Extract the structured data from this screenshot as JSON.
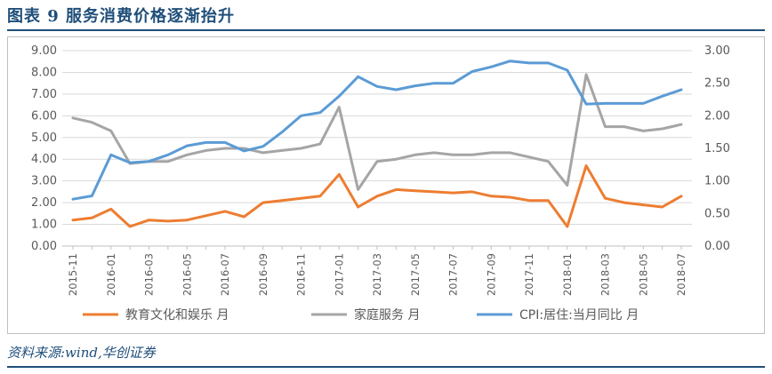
{
  "figure": {
    "title": "图表 9   服务消费价格逐渐抬升",
    "source": "资料来源:wind,华创证券"
  },
  "chart_data": {
    "type": "line",
    "x": [
      "2015-11",
      "2015-12",
      "2016-01",
      "2016-02",
      "2016-03",
      "2016-04",
      "2016-05",
      "2016-06",
      "2016-07",
      "2016-08",
      "2016-09",
      "2016-10",
      "2016-11",
      "2016-12",
      "2017-01",
      "2017-02",
      "2017-03",
      "2017-04",
      "2017-05",
      "2017-06",
      "2017-07",
      "2017-08",
      "2017-09",
      "2017-10",
      "2017-11",
      "2017-12",
      "2018-01",
      "2018-02",
      "2018-03",
      "2018-04",
      "2018-05",
      "2018-06",
      "2018-07"
    ],
    "xtick_labels": [
      "2015-11",
      "2016-01",
      "2016-03",
      "2016-05",
      "2016-07",
      "2016-09",
      "2016-11",
      "2017-01",
      "2017-03",
      "2017-05",
      "2017-07",
      "2017-09",
      "2017-11",
      "2018-01",
      "2018-03",
      "2018-05",
      "2018-07"
    ],
    "left_axis": {
      "ylim": [
        0,
        9
      ],
      "ticks": [
        "0.00",
        "1.00",
        "2.00",
        "3.00",
        "4.00",
        "5.00",
        "6.00",
        "7.00",
        "8.00",
        "9.00"
      ]
    },
    "right_axis": {
      "ylim": [
        0,
        3
      ],
      "ticks": [
        "0.00",
        "0.50",
        "1.00",
        "1.50",
        "2.00",
        "2.50",
        "3.00"
      ]
    },
    "series": [
      {
        "name": "教育文化和娱乐 月",
        "axis": "left",
        "color": "#ed7d31",
        "values": [
          1.2,
          1.3,
          1.7,
          0.9,
          1.2,
          1.15,
          1.2,
          1.4,
          1.6,
          1.35,
          2.0,
          2.1,
          2.2,
          2.3,
          3.3,
          1.8,
          2.3,
          2.6,
          2.55,
          2.5,
          2.45,
          2.5,
          2.3,
          2.25,
          2.1,
          2.1,
          0.9,
          3.7,
          2.2,
          2.0,
          1.9,
          1.8,
          2.3
        ]
      },
      {
        "name": "家庭服务 月",
        "axis": "left",
        "color": "#a5a5a5",
        "values": [
          5.9,
          5.7,
          5.3,
          3.8,
          3.9,
          3.9,
          4.2,
          4.4,
          4.5,
          4.5,
          4.3,
          4.4,
          4.5,
          4.7,
          6.4,
          2.6,
          3.9,
          4.0,
          4.2,
          4.3,
          4.2,
          4.2,
          4.3,
          4.3,
          4.1,
          3.9,
          2.8,
          7.9,
          5.5,
          5.5,
          5.3,
          5.4,
          5.6
        ]
      },
      {
        "name": "CPI:居住:当月同比 月",
        "axis": "right",
        "color": "#5b9bd5",
        "values": [
          0.72,
          0.77,
          1.4,
          1.28,
          1.3,
          1.4,
          1.54,
          1.59,
          1.59,
          1.46,
          1.53,
          1.75,
          2.0,
          2.05,
          2.3,
          2.6,
          2.45,
          2.4,
          2.46,
          2.5,
          2.5,
          2.68,
          2.75,
          2.84,
          2.81,
          2.81,
          2.7,
          2.18,
          2.19,
          2.19,
          2.19,
          2.3,
          2.4
        ]
      }
    ],
    "legend_position": "bottom"
  }
}
